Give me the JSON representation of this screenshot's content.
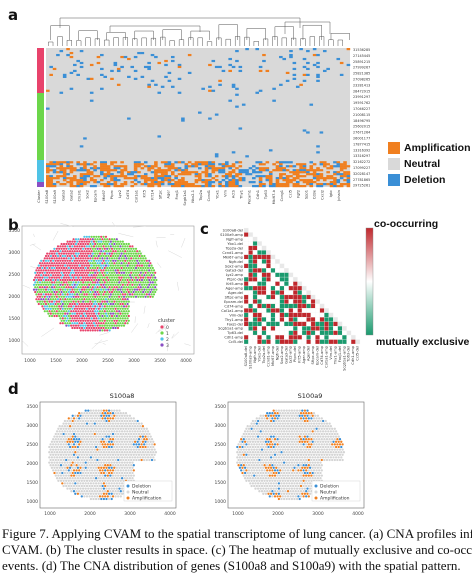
{
  "panels": {
    "a": "a",
    "b": "b",
    "c": "c",
    "d": "d"
  },
  "panel_a": {
    "legend": [
      {
        "label": "Amplification",
        "color": "#f07f1f"
      },
      {
        "label": "Neutral",
        "color": "#d9d9d9"
      },
      {
        "label": "Deletion",
        "color": "#3a8fd6"
      }
    ],
    "cluster_colors": [
      "#e8436b",
      "#6cd64a",
      "#4fc3e6",
      "#8a4fc4"
    ],
    "row_labels": [
      "31536285",
      "27145445",
      "25891215",
      "27999267",
      "25821385",
      "27098265",
      "23281413",
      "28472915",
      "23991297",
      "19591762",
      "17046227",
      "21008115",
      "18496795",
      "25602015",
      "27671264",
      "26001177",
      "17877415",
      "13316392",
      "13316297",
      "32162272",
      "17099227",
      "32028147",
      "27781865",
      "29725261"
    ],
    "col_labels": [
      "Cluster",
      "S100a8",
      "S100a9",
      "Gata3",
      "Gata2",
      "Chi3l1",
      "Sox2",
      "Epcam",
      "Mki67",
      "Ptprc",
      "Lyz2",
      "Cd74",
      "Col1a1",
      "Krt5",
      "Krt14",
      "Sftpc",
      "Ager",
      "Foxj1",
      "Scgb1a1",
      "Nkx2-1",
      "Top2a",
      "Ccnd1",
      "Ybx1",
      "Vim",
      "Actb",
      "Thy1",
      "Pecam1",
      "Cdh1",
      "Tp63",
      "Mki67-b",
      "Ccng1",
      "Ccl5",
      "Fgf2",
      "Spp1",
      "Cd3e",
      "Cxcl2",
      "Igkc",
      "Jchain"
    ]
  },
  "panel_b": {
    "legend_title": "cluster",
    "legend_items": [
      {
        "label": "0",
        "color": "#e8436b"
      },
      {
        "label": "1",
        "color": "#6cd64a"
      },
      {
        "label": "2",
        "color": "#4fc3e6"
      },
      {
        "label": "3",
        "color": "#8a4fc4"
      }
    ],
    "x_ticks": [
      "1000",
      "1500",
      "2000",
      "2500",
      "3000",
      "3500",
      "4000"
    ],
    "y_ticks": [
      "3500",
      "3000",
      "2500",
      "2000",
      "1500",
      "1000"
    ]
  },
  "panel_c": {
    "cbar_top": "co-occurring",
    "cbar_bottom": "mutually exclusive",
    "labels": [
      "S100a8-del",
      "S100a9-amp",
      "Ngfr-amp",
      "Ybx1-del",
      "Top2a-del",
      "Ccnd1-amp",
      "Mki67-amp",
      "Ngfr-del",
      "Sox2-amp",
      "Gata3-del",
      "Lyz2-amp",
      "Ptprc-del",
      "Krt5-amp",
      "Ager-amp",
      "Ager-del",
      "Sftpc-amp",
      "Epcam-del",
      "Cd74-amp",
      "Col1a1-amp",
      "Vim-del",
      "Thy1-amp",
      "Foxj1-del",
      "Scgb1a1-amp",
      "Tp63-del",
      "Cdh1-amp",
      "Ccl5-del"
    ]
  },
  "panel_d": {
    "plots": [
      {
        "title": "S100a8"
      },
      {
        "title": "S100a9"
      }
    ],
    "legend": [
      {
        "label": "Deletion",
        "color": "#3a8fd6"
      },
      {
        "label": "Neutral",
        "color": "#d9d9d9"
      },
      {
        "label": "Amplification",
        "color": "#f07f1f"
      }
    ],
    "x_ticks": [
      "1000",
      "2000",
      "3000",
      "4000"
    ],
    "y_ticks": [
      "3500",
      "3000",
      "2500",
      "2000",
      "1500",
      "1000"
    ]
  },
  "caption": {
    "line1": "Figure 7. Applying CVAM to the spatial transcriptome of lung cancer. (a) CNA profiles inferred b",
    "line2": "CVAM. (b) The cluster results in space. (c) The heatmap of mutually exclusive and co-occurring CN",
    "line3": "events. (d) The CNA distribution of genes (S100a8 and S100a9) with the spatial pattern."
  }
}
